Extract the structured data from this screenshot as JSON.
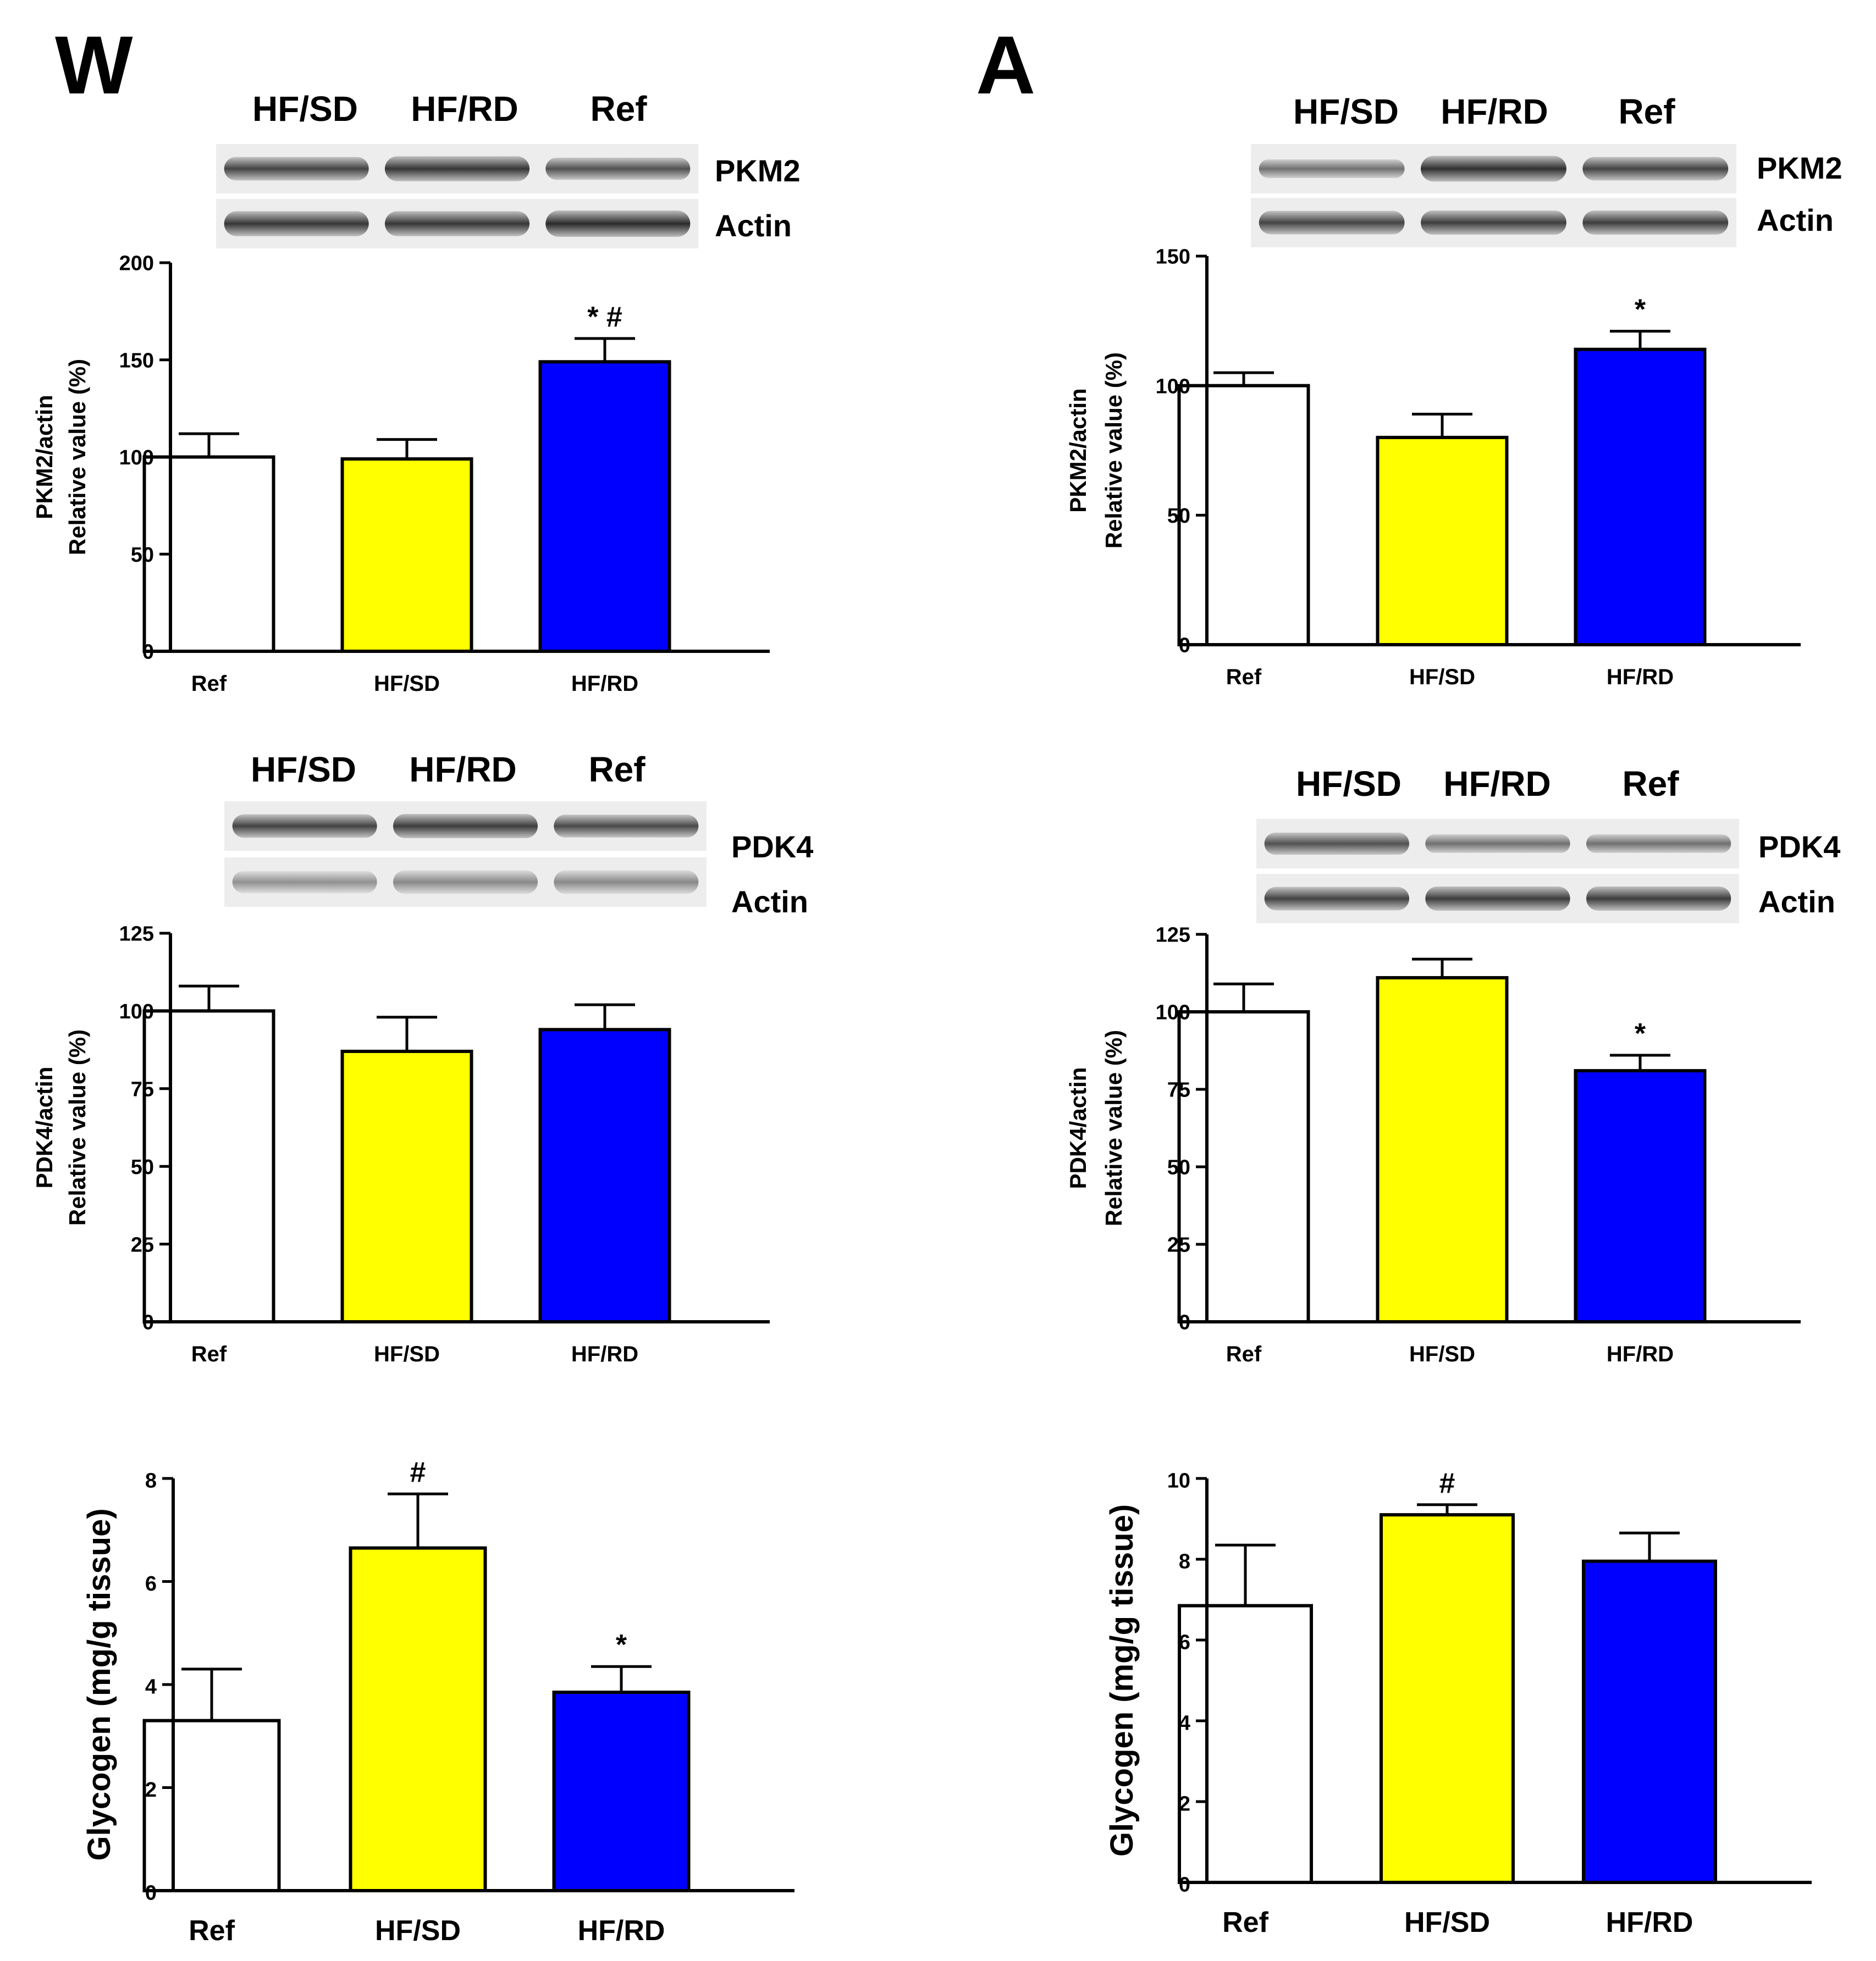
{
  "panels": [
    {
      "letter": "W"
    },
    {
      "letter": "A"
    }
  ],
  "colors": {
    "Ref": "#ffffff",
    "HF/SD": "#ffff00",
    "HF/RD": "#0000ff",
    "outline": "#000000"
  },
  "blots": [
    {
      "lanes": [
        "HF/SD",
        "HF/RD",
        "Ref"
      ],
      "rows": [
        "PKM2",
        "Actin"
      ]
    },
    {
      "lanes": [
        "HF/SD",
        "HF/RD",
        "Ref"
      ],
      "rows": [
        "PDK4",
        "Actin"
      ]
    },
    {
      "lanes": [
        "HF/SD",
        "HF/RD",
        "Ref"
      ],
      "rows": [
        "PKM2",
        "Actin"
      ]
    },
    {
      "lanes": [
        "HF/SD",
        "HF/RD",
        "Ref"
      ],
      "rows": [
        "PDK4",
        "Actin"
      ]
    }
  ],
  "chart_data": [
    {
      "type": "bar",
      "categories": [
        "Ref",
        "HF/SD",
        "HF/RD"
      ],
      "values": [
        100,
        99,
        149
      ],
      "errors": [
        12,
        10,
        12
      ],
      "annotations": [
        "",
        "",
        "* #"
      ],
      "ylabel_lines": [
        "PKM2/actin",
        "Relative value (%)"
      ],
      "ylim": [
        0,
        200
      ],
      "yticks": [
        0,
        50,
        100,
        150,
        200
      ]
    },
    {
      "type": "bar",
      "categories": [
        "Ref",
        "HF/SD",
        "HF/RD"
      ],
      "values": [
        100,
        87,
        94
      ],
      "errors": [
        8,
        11,
        8
      ],
      "annotations": [
        "",
        "",
        ""
      ],
      "ylabel_lines": [
        "PDK4/actin",
        "Relative value (%)"
      ],
      "ylim": [
        0,
        125
      ],
      "yticks": [
        0,
        25,
        50,
        75,
        100,
        125
      ]
    },
    {
      "type": "bar",
      "categories": [
        "Ref",
        "HF/SD",
        "HF/RD"
      ],
      "values": [
        3.3,
        6.65,
        3.85
      ],
      "errors": [
        1.0,
        1.05,
        0.5
      ],
      "annotations": [
        "",
        "#",
        "*"
      ],
      "ylabel_lines": [
        "Glycogen (mg/g tissue)"
      ],
      "ylim": [
        0,
        8
      ],
      "yticks": [
        0,
        2,
        4,
        6,
        8
      ]
    },
    {
      "type": "bar",
      "categories": [
        "Ref",
        "HF/SD",
        "HF/RD"
      ],
      "values": [
        100,
        80,
        114
      ],
      "errors": [
        5,
        9,
        7
      ],
      "annotations": [
        "",
        "",
        "*"
      ],
      "ylabel_lines": [
        "PKM2/actin",
        "Relative value (%)"
      ],
      "ylim": [
        0,
        150
      ],
      "yticks": [
        0,
        50,
        100,
        150
      ]
    },
    {
      "type": "bar",
      "categories": [
        "Ref",
        "HF/SD",
        "HF/RD"
      ],
      "values": [
        100,
        111,
        81
      ],
      "errors": [
        9,
        6,
        5
      ],
      "annotations": [
        "",
        "",
        "*"
      ],
      "ylabel_lines": [
        "PDK4/actin",
        "Relative value (%)"
      ],
      "ylim": [
        0,
        125
      ],
      "yticks": [
        0,
        25,
        50,
        75,
        100,
        125
      ]
    },
    {
      "type": "bar",
      "categories": [
        "Ref",
        "HF/SD",
        "HF/RD"
      ],
      "values": [
        6.85,
        9.1,
        7.95
      ],
      "errors": [
        1.5,
        0.25,
        0.7
      ],
      "annotations": [
        "",
        "#",
        ""
      ],
      "ylabel_lines": [
        "Glycogen (mg/g tissue)"
      ],
      "ylim": [
        0,
        10
      ],
      "yticks": [
        0,
        2,
        4,
        6,
        8,
        10
      ]
    }
  ]
}
